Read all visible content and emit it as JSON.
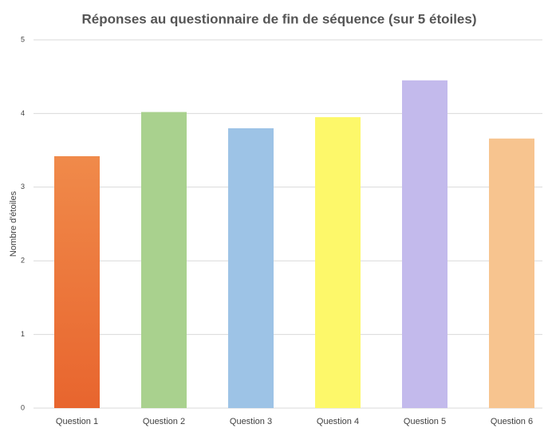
{
  "chart_data": {
    "type": "bar",
    "title": "Réponses au questionnaire de fin de séquence (sur 5 étoiles)",
    "y_label": "Nombre d'étoiles",
    "categories": [
      "Question 1",
      "Question 2",
      "Question 3",
      "Question 4",
      "Question 5",
      "Question 6"
    ],
    "values": [
      3.42,
      4.02,
      3.8,
      3.95,
      4.45,
      3.66
    ],
    "colors": [
      "#ee7636",
      "#a9d18e",
      "#9dc3e6",
      "#fdf86a",
      "#c3baec",
      "#f7c48f"
    ],
    "ylim": [
      0,
      5
    ],
    "yticks": [
      0,
      1,
      2,
      3,
      4,
      5
    ],
    "grid": true
  }
}
